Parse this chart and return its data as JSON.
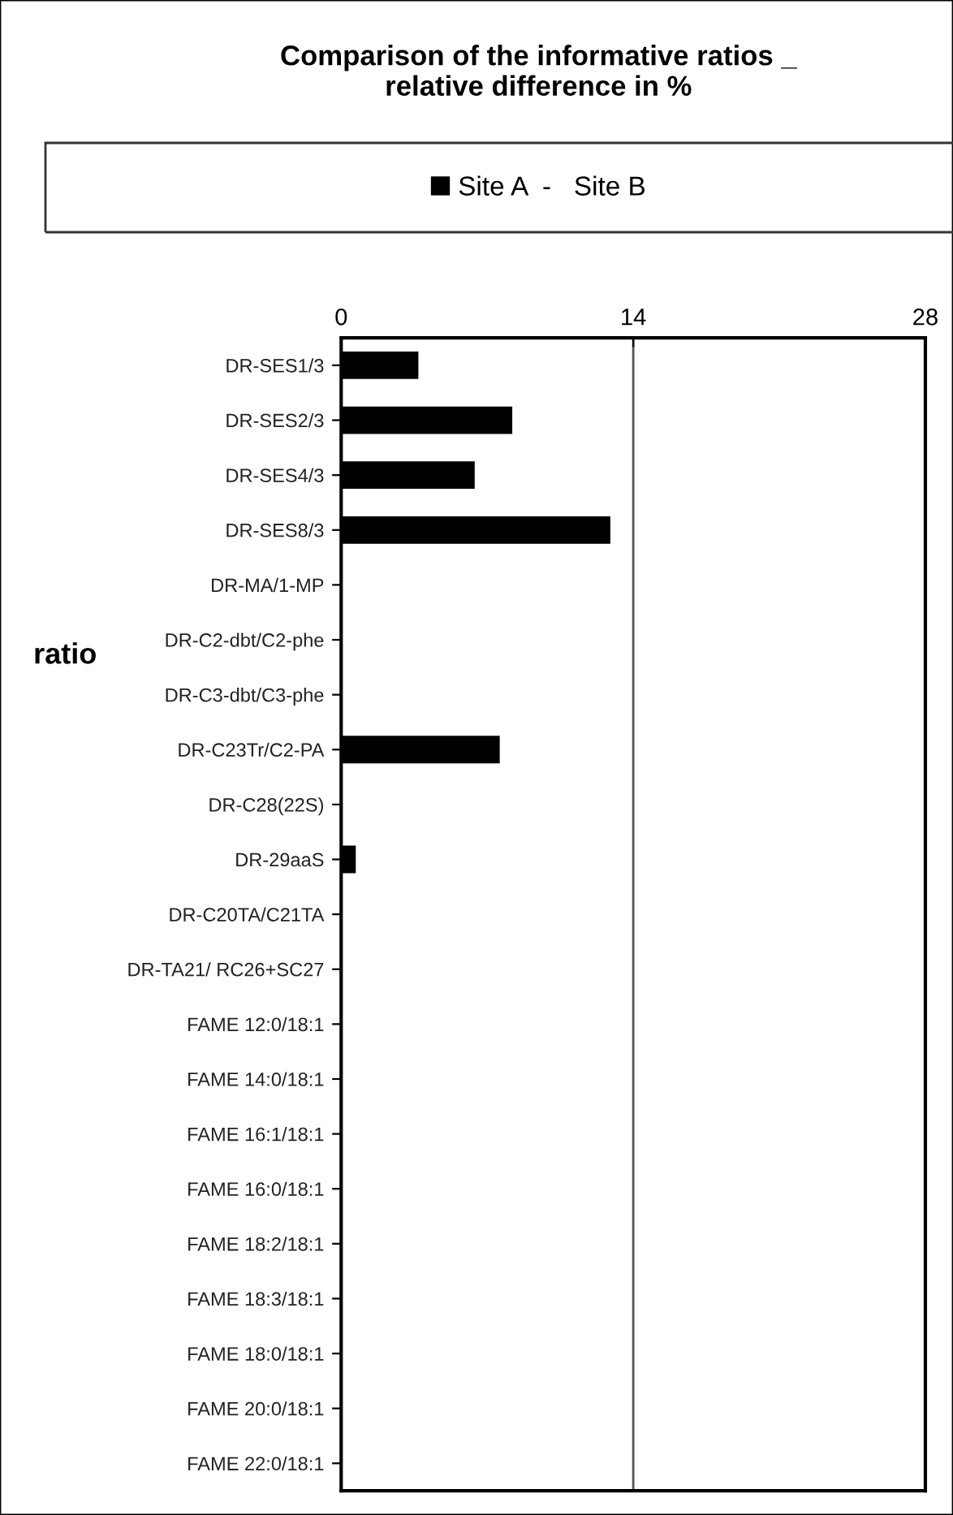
{
  "chart_data": {
    "type": "bar",
    "orientation": "horizontal",
    "title": "Comparison of the informative ratios _\nrelative difference in %",
    "ylabel": "ratio",
    "categories": [
      "DR-SES1/3",
      "DR-SES2/3",
      "DR-SES4/3",
      "DR-SES8/3",
      "DR-MA/1-MP",
      "DR-C2-dbt/C2-phe",
      "DR-C3-dbt/C3-phe",
      "DR-C23Tr/C2-PA",
      "DR-C28(22S)",
      "DR-29aaS",
      "DR-C20TA/C21TA",
      "DR-TA21/ RC26+SC27",
      "FAME 12:0/18:1",
      "FAME 14:0/18:1",
      "FAME 16:1/18:1",
      "FAME 16:0/18:1",
      "FAME 18:2/18:1",
      "FAME 18:3/18:1",
      "FAME 18:0/18:1",
      "FAME 20:0/18:1",
      "FAME 22:0/18:1"
    ],
    "series": [
      {
        "name": "Site A  -   Site B",
        "color": "#000000",
        "values": [
          3.7,
          8.2,
          6.4,
          12.9,
          0,
          0,
          0,
          7.6,
          0,
          0.7,
          0,
          0,
          0,
          0,
          0,
          0,
          0,
          0,
          0,
          0,
          0
        ]
      }
    ],
    "xlim": [
      0,
      28
    ],
    "xticks": [
      0,
      14,
      28
    ],
    "grid": "x",
    "legend": "top"
  }
}
